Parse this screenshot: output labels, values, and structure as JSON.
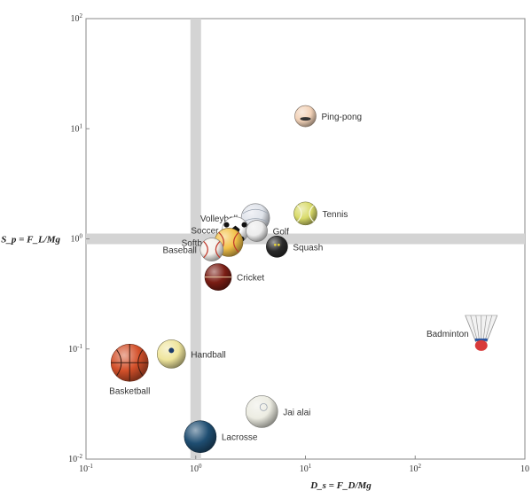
{
  "chart_data": {
    "type": "scatter",
    "title": "",
    "xlabel": "D_s = F_D/Mg",
    "ylabel": "S_p = F_L/Mg",
    "xscale": "log",
    "yscale": "log",
    "xlim": [
      0.1,
      1000
    ],
    "ylim": [
      0.01,
      100
    ],
    "x_tick_values": [
      0.1,
      1,
      10,
      100,
      1000
    ],
    "y_tick_values": [
      0.01,
      0.1,
      1,
      10,
      100
    ],
    "x_tick_labels": [
      {
        "base": "10",
        "exp": "-1"
      },
      {
        "base": "10",
        "exp": "0"
      },
      {
        "base": "10",
        "exp": "1"
      },
      {
        "base": "10",
        "exp": "2"
      },
      {
        "base": "10",
        "exp": ""
      }
    ],
    "y_tick_labels": [
      {
        "base": "10",
        "exp": "-2"
      },
      {
        "base": "10",
        "exp": "-1"
      },
      {
        "base": "10",
        "exp": "0"
      },
      {
        "base": "10",
        "exp": "1"
      },
      {
        "base": "10",
        "exp": "2"
      }
    ],
    "reference_lines": {
      "x": 1,
      "y": 1
    },
    "grid": false,
    "points": [
      {
        "label": "Ping-pong",
        "x": 10,
        "y": 13,
        "label_side": "right",
        "color": "#f2d2b8",
        "icon": "ping-pong-ball"
      },
      {
        "label": "Tennis",
        "x": 10,
        "y": 1.7,
        "label_side": "right",
        "color": "#d9db6a",
        "icon": "tennis-ball"
      },
      {
        "label": "Volleyball",
        "x": 3.5,
        "y": 1.55,
        "label_side": "left",
        "color": "#dfe3ea",
        "icon": "volleyball"
      },
      {
        "label": "Soccer",
        "x": 2.3,
        "y": 1.2,
        "label_side": "left",
        "color": "#ffffff",
        "icon": "soccer-ball"
      },
      {
        "label": "Golf",
        "x": 3.6,
        "y": 1.18,
        "label_side": "right",
        "color": "#ececec",
        "icon": "golf-ball"
      },
      {
        "label": "Softball",
        "x": 2.0,
        "y": 0.93,
        "label_side": "left",
        "color": "#f3c24a",
        "icon": "softball"
      },
      {
        "label": "Squash",
        "x": 5.5,
        "y": 0.85,
        "label_side": "right",
        "color": "#2a2a2a",
        "icon": "squash-ball"
      },
      {
        "label": "Baseball",
        "x": 1.4,
        "y": 0.8,
        "label_side": "left",
        "color": "#f4f1ec",
        "icon": "baseball"
      },
      {
        "label": "Cricket",
        "x": 1.6,
        "y": 0.45,
        "label_side": "right",
        "color": "#7a1d14",
        "icon": "cricket-ball"
      },
      {
        "label": "Handball",
        "x": 0.6,
        "y": 0.09,
        "label_side": "right",
        "color": "#efe59c",
        "icon": "handball"
      },
      {
        "label": "Basketball",
        "x": 0.25,
        "y": 0.075,
        "label_side": "below",
        "color": "#d3502a",
        "icon": "basketball"
      },
      {
        "label": "Jai alai",
        "x": 4,
        "y": 0.027,
        "label_side": "right",
        "color": "#ecece2",
        "icon": "jai-alai-ball"
      },
      {
        "label": "Lacrosse",
        "x": 1.1,
        "y": 0.016,
        "label_side": "right",
        "color": "#1f4e72",
        "icon": "lacrosse-ball"
      },
      {
        "label": "Badminton",
        "x": 400,
        "y": 0.12,
        "label_side": "left",
        "color": "#d83a3a",
        "icon": "badminton-shuttlecock"
      }
    ]
  }
}
